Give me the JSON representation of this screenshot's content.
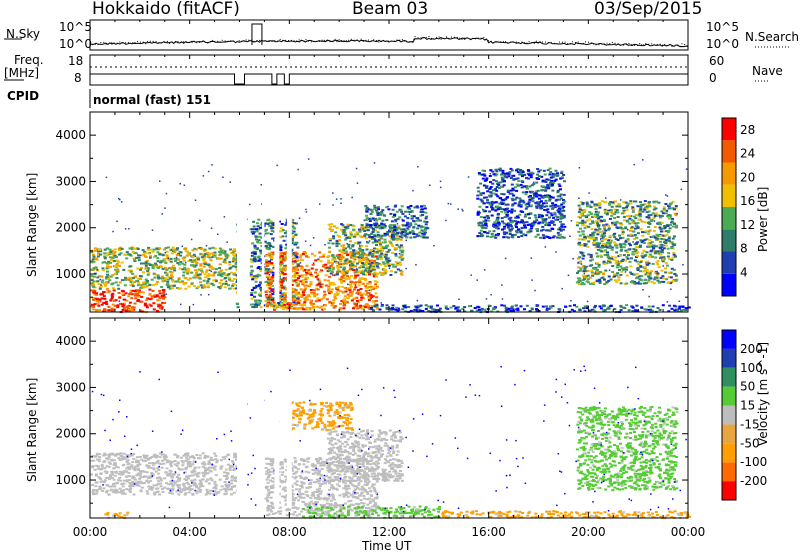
{
  "header": {
    "radar": "Hokkaido (fitACF)",
    "beam": "Beam 03",
    "date": "03/Sep/2015"
  },
  "summary": {
    "nsky_label": "N.Sky",
    "nsearch_label": "N.Search",
    "nsky_ticks": [
      "10^5",
      "10^0"
    ],
    "freq_label_1": "Freq.",
    "freq_label_2": "[MHz]",
    "freq_ticks": [
      "18",
      "8"
    ],
    "nave_label": "Nave",
    "nave_ticks": [
      "60",
      "0"
    ],
    "cpid_label": "CPID",
    "cpid_value": "normal (fast) 151"
  },
  "colors": {
    "power_scale": [
      "#0000ff",
      "#1f3fb0",
      "#2e7d6a",
      "#4caa55",
      "#f0c000",
      "#f79a00",
      "#f15a00",
      "#ff0000"
    ],
    "velocity_scale": [
      "#ff0000",
      "#ff6a00",
      "#ffa000",
      "#e8a640",
      "#bdbdbd",
      "#55cc33",
      "#2f8f5f",
      "#1f3fb0",
      "#0000ff"
    ],
    "ground_scatter": "#c3c3c3"
  },
  "chart_data": [
    {
      "type": "heatmap",
      "panel": "power",
      "ylabel": "Slant Range [km]",
      "xlabel": "",
      "x_ticks_hours": [
        0,
        4,
        8,
        12,
        16,
        20,
        24
      ],
      "y_ticks": [
        "1000",
        "2000",
        "3000",
        "4000"
      ],
      "ylim": [
        180,
        4500
      ],
      "xlim": [
        0,
        24
      ],
      "colorbar_label": "Power [dB]",
      "colorbar_ticks": [
        "4",
        "8",
        "12",
        "16",
        "20",
        "24",
        "28"
      ],
      "colorbar_range": [
        0,
        30
      ],
      "regions": [
        {
          "t0": 0.0,
          "t1": 3.0,
          "r0": 200,
          "r1": 700,
          "power": 26
        },
        {
          "t0": 0.0,
          "t1": 6.0,
          "r0": 700,
          "r1": 1600,
          "power": 15
        },
        {
          "t0": 5.8,
          "t1": 8.3,
          "r0": 300,
          "r1": 2200,
          "power": 9
        },
        {
          "t0": 7.0,
          "t1": 11.5,
          "r0": 250,
          "r1": 1500,
          "power": 22
        },
        {
          "t0": 9.5,
          "t1": 12.5,
          "r0": 1000,
          "r1": 2100,
          "power": 13
        },
        {
          "t0": 11.0,
          "t1": 13.5,
          "r0": 1800,
          "r1": 2500,
          "power": 8
        },
        {
          "t0": 15.5,
          "t1": 19.0,
          "r0": 1800,
          "r1": 3300,
          "power": 6
        },
        {
          "t0": 19.5,
          "t1": 23.5,
          "r0": 800,
          "r1": 2600,
          "power": 12
        },
        {
          "t0": 11.0,
          "t1": 24.0,
          "r0": 200,
          "r1": 350,
          "power": 6
        }
      ]
    },
    {
      "type": "heatmap",
      "panel": "velocity",
      "ylabel": "Slant Range [km]",
      "xlabel": "Time UT",
      "x_tick_labels": [
        "00:00",
        "04:00",
        "08:00",
        "12:00",
        "16:00",
        "20:00",
        "00:00"
      ],
      "y_ticks": [
        "1000",
        "2000",
        "3000",
        "4000"
      ],
      "ylim": [
        180,
        4500
      ],
      "xlim": [
        0,
        24
      ],
      "colorbar_label": "Velocity [m s^-1]",
      "colorbar_ticks": [
        "200",
        "100",
        "50",
        "15",
        "-15",
        "-50",
        "-100",
        "-200"
      ],
      "regions": [
        {
          "t0": 0.0,
          "t1": 6.0,
          "r0": 700,
          "r1": 1600,
          "velocity": 0
        },
        {
          "t0": 7.0,
          "t1": 11.5,
          "r0": 250,
          "r1": 1500,
          "velocity": 0
        },
        {
          "t0": 9.5,
          "t1": 12.5,
          "r0": 1000,
          "r1": 2100,
          "velocity": 0
        },
        {
          "t0": 8.0,
          "t1": 10.5,
          "r0": 2100,
          "r1": 2700,
          "velocity": -60
        },
        {
          "t0": 8.5,
          "t1": 14.0,
          "r0": 200,
          "r1": 450,
          "velocity": 40
        },
        {
          "t0": 14.0,
          "t1": 24.0,
          "r0": 200,
          "r1": 350,
          "velocity": -60
        },
        {
          "t0": 19.5,
          "t1": 23.5,
          "r0": 800,
          "r1": 2600,
          "velocity": 30
        },
        {
          "t0": 0.5,
          "t1": 1.5,
          "r0": 200,
          "r1": 320,
          "velocity": -80
        }
      ]
    }
  ]
}
